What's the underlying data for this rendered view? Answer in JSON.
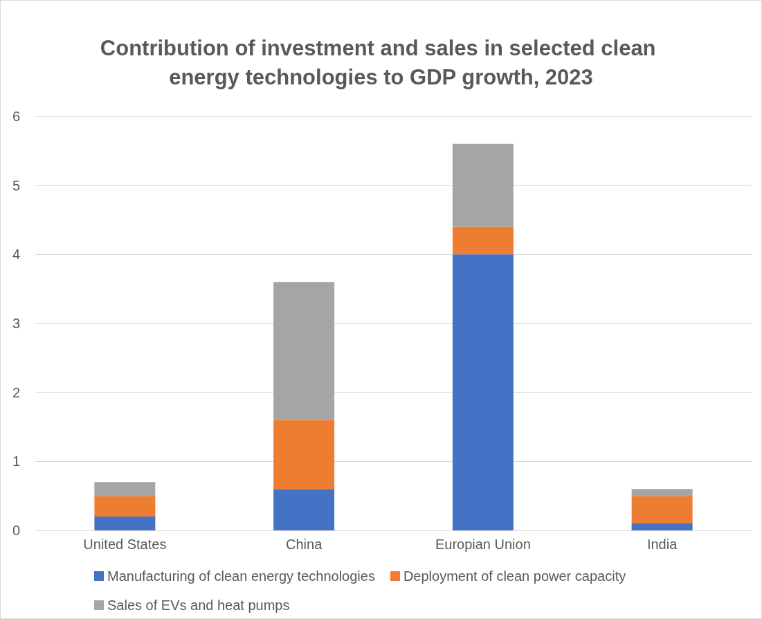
{
  "chart_data": {
    "type": "bar",
    "title": "Contribution of investment and sales in selected clean energy technologies to GDP growth, 2023",
    "categories": [
      "United States",
      "China",
      "Europian Union",
      "India"
    ],
    "series": [
      {
        "name": "Manufacturing of clean energy technologies",
        "color": "#4472c4",
        "values": [
          0.2,
          0.6,
          4.0,
          0.1
        ]
      },
      {
        "name": "Deployment of clean power capacity",
        "color": "#ed7d31",
        "values": [
          0.3,
          1.0,
          0.4,
          0.4
        ]
      },
      {
        "name": "Sales of EVs and heat pumps",
        "color": "#a5a5a5",
        "values": [
          0.2,
          2.0,
          1.2,
          0.1
        ]
      }
    ],
    "stacked": true,
    "ylim": [
      0,
      6
    ],
    "yticks": [
      0,
      1,
      2,
      3,
      4,
      5,
      6
    ],
    "grid": "y",
    "legend": "bottom"
  }
}
